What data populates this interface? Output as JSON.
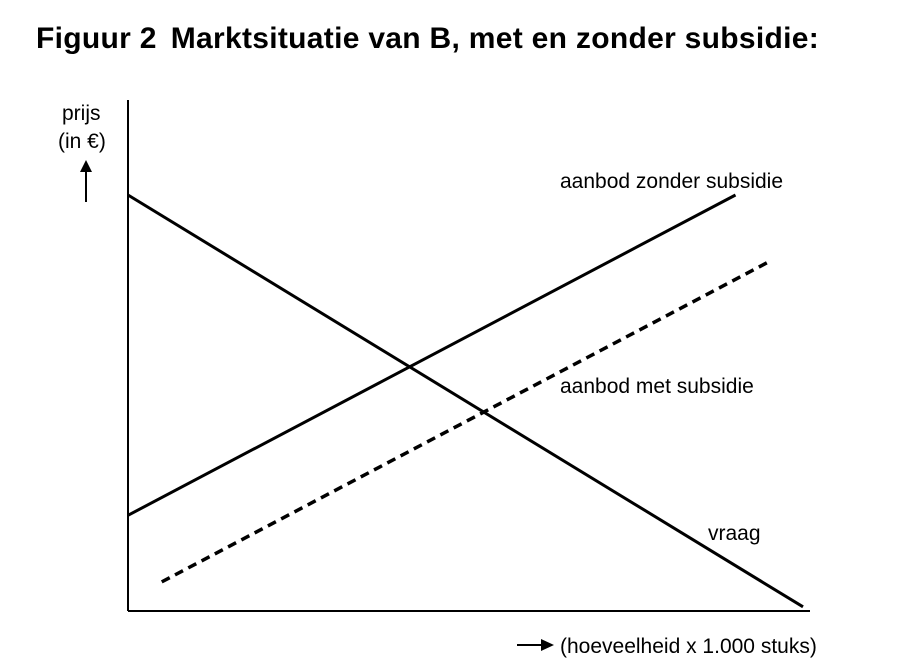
{
  "figure": {
    "number": "Figuur 2",
    "title": "Marktsituatie van B, met en zonder subsidie:"
  },
  "chart_data": {
    "type": "line",
    "title": "Marktsituatie van B, met en zonder subsidie:",
    "ylabel_line1": "prijs",
    "ylabel_line2": "(in €)",
    "xlabel": "(hoeveelheid x 1.000 stuks)",
    "xlim": [
      0,
      100
    ],
    "ylim": [
      0,
      100
    ],
    "grid": false,
    "series": [
      {
        "name": "aanbod zonder subsidie",
        "style": "solid",
        "x": [
          0,
          90
        ],
        "y": [
          23,
          100
        ]
      },
      {
        "name": "aanbod met subsidie",
        "style": "dashed",
        "x": [
          5,
          95
        ],
        "y": [
          7,
          84
        ]
      },
      {
        "name": "vraag",
        "style": "solid",
        "x": [
          0,
          100
        ],
        "y": [
          100,
          1
        ]
      }
    ]
  }
}
